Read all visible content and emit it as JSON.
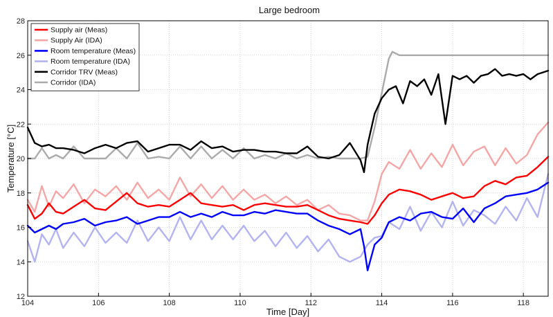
{
  "chart_data": {
    "type": "line",
    "title": "Large bedroom",
    "xlabel": "Time [Day]",
    "ylabel": "Temperature [°C]",
    "xlim": [
      104,
      118.7
    ],
    "ylim": [
      12,
      28
    ],
    "xticks": [
      104,
      106,
      108,
      110,
      112,
      114,
      116,
      118
    ],
    "yticks": [
      12,
      14,
      16,
      18,
      20,
      22,
      24,
      26,
      28
    ],
    "grid": true,
    "legend_position": "top-left",
    "series": [
      {
        "name": "Supply air (Meas)",
        "color": "#ff0000",
        "x": [
          104.0,
          104.2,
          104.4,
          104.6,
          104.8,
          105.0,
          105.3,
          105.6,
          105.9,
          106.2,
          106.5,
          106.8,
          107.1,
          107.4,
          107.7,
          108.0,
          108.3,
          108.6,
          108.9,
          109.2,
          109.5,
          109.8,
          110.1,
          110.4,
          110.7,
          111.0,
          111.3,
          111.6,
          111.9,
          112.2,
          112.5,
          112.8,
          113.1,
          113.4,
          113.6,
          113.8,
          114.0,
          114.2,
          114.5,
          114.8,
          115.1,
          115.4,
          115.7,
          116.0,
          116.3,
          116.6,
          116.9,
          117.2,
          117.5,
          117.8,
          118.1,
          118.4,
          118.7
        ],
        "values": [
          17.3,
          16.5,
          16.8,
          17.4,
          16.9,
          16.8,
          17.2,
          17.6,
          17.1,
          17.0,
          17.5,
          18.0,
          17.4,
          17.2,
          17.3,
          17.2,
          17.6,
          18.0,
          17.4,
          17.3,
          17.2,
          17.3,
          17.0,
          17.3,
          17.4,
          17.3,
          17.2,
          17.2,
          17.3,
          17.0,
          16.7,
          16.5,
          16.4,
          16.3,
          16.2,
          16.7,
          17.4,
          17.9,
          18.2,
          18.1,
          17.9,
          17.6,
          17.8,
          18.0,
          17.7,
          17.8,
          18.4,
          18.7,
          18.5,
          18.9,
          19.0,
          19.5,
          20.1
        ]
      },
      {
        "name": "Supply Air (IDA)",
        "color": "#f4a6a6",
        "x": [
          104.0,
          104.2,
          104.4,
          104.6,
          104.8,
          105.0,
          105.3,
          105.6,
          105.9,
          106.2,
          106.5,
          106.8,
          107.1,
          107.4,
          107.7,
          108.0,
          108.3,
          108.6,
          108.9,
          109.2,
          109.5,
          109.8,
          110.1,
          110.4,
          110.7,
          111.0,
          111.3,
          111.6,
          111.9,
          112.2,
          112.5,
          112.8,
          113.1,
          113.4,
          113.6,
          113.8,
          114.0,
          114.2,
          114.5,
          114.8,
          115.1,
          115.4,
          115.7,
          116.0,
          116.3,
          116.6,
          116.9,
          117.2,
          117.5,
          117.8,
          118.1,
          118.4,
          118.7
        ],
        "values": [
          17.6,
          16.9,
          18.4,
          17.2,
          18.1,
          17.7,
          18.5,
          17.4,
          18.2,
          17.8,
          18.4,
          17.6,
          18.6,
          17.7,
          18.2,
          17.6,
          18.9,
          17.8,
          18.5,
          17.7,
          18.4,
          17.6,
          18.2,
          17.6,
          17.9,
          17.4,
          17.8,
          17.3,
          17.6,
          17.0,
          17.3,
          16.8,
          16.7,
          16.4,
          16.4,
          17.5,
          19.1,
          19.8,
          19.4,
          20.5,
          19.4,
          20.3,
          19.5,
          20.8,
          19.6,
          20.4,
          20.7,
          19.6,
          20.6,
          19.7,
          20.2,
          21.4,
          22.1
        ]
      },
      {
        "name": "Room temperature (Meas)",
        "color": "#0000ff",
        "x": [
          104.0,
          104.2,
          104.4,
          104.6,
          104.8,
          105.0,
          105.3,
          105.6,
          105.9,
          106.2,
          106.5,
          106.8,
          107.1,
          107.4,
          107.7,
          108.0,
          108.3,
          108.6,
          108.9,
          109.2,
          109.5,
          109.8,
          110.1,
          110.4,
          110.7,
          111.0,
          111.3,
          111.6,
          111.9,
          112.2,
          112.5,
          112.8,
          113.1,
          113.4,
          113.5,
          113.6,
          113.8,
          114.0,
          114.2,
          114.5,
          114.8,
          115.1,
          115.4,
          115.7,
          116.0,
          116.3,
          116.6,
          116.9,
          117.2,
          117.5,
          117.8,
          118.1,
          118.4,
          118.7
        ],
        "values": [
          16.1,
          15.7,
          15.9,
          16.1,
          15.9,
          16.2,
          16.3,
          16.5,
          16.1,
          16.3,
          16.4,
          16.6,
          16.2,
          16.4,
          16.6,
          16.6,
          16.9,
          16.6,
          16.8,
          16.6,
          16.9,
          16.7,
          16.7,
          16.9,
          16.8,
          17.0,
          16.9,
          16.8,
          16.8,
          16.4,
          16.1,
          15.9,
          15.6,
          15.9,
          14.9,
          13.5,
          15.0,
          15.4,
          16.3,
          16.6,
          16.4,
          16.8,
          16.9,
          16.6,
          16.5,
          17.1,
          16.3,
          17.1,
          17.4,
          17.8,
          17.9,
          18.0,
          18.2,
          18.6
        ]
      },
      {
        "name": "Room temperature (IDA)",
        "color": "#b3b3f0",
        "x": [
          104.0,
          104.2,
          104.4,
          104.6,
          104.8,
          105.0,
          105.3,
          105.6,
          105.9,
          106.2,
          106.5,
          106.8,
          107.1,
          107.4,
          107.7,
          108.0,
          108.3,
          108.6,
          108.9,
          109.2,
          109.5,
          109.8,
          110.1,
          110.4,
          110.7,
          111.0,
          111.3,
          111.6,
          111.9,
          112.2,
          112.5,
          112.8,
          113.1,
          113.4,
          113.6,
          113.8,
          114.0,
          114.2,
          114.5,
          114.8,
          115.1,
          115.4,
          115.7,
          116.0,
          116.3,
          116.6,
          116.9,
          117.2,
          117.5,
          117.8,
          118.1,
          118.4,
          118.7
        ],
        "values": [
          15.2,
          14.0,
          15.6,
          15.0,
          15.9,
          14.8,
          15.7,
          14.9,
          16.0,
          15.1,
          15.7,
          15.1,
          16.4,
          15.2,
          16.0,
          15.2,
          16.6,
          15.3,
          16.4,
          15.3,
          16.1,
          15.3,
          16.1,
          15.2,
          15.8,
          14.9,
          15.7,
          14.8,
          15.5,
          14.6,
          15.3,
          14.3,
          14.0,
          14.3,
          15.0,
          15.4,
          15.5,
          16.3,
          15.9,
          17.2,
          15.8,
          16.9,
          16.0,
          17.5,
          16.1,
          17.0,
          16.7,
          16.2,
          17.2,
          16.4,
          17.7,
          16.6,
          19.1
        ]
      },
      {
        "name": "Corridor TRV (Meas)",
        "color": "#000000",
        "x": [
          104.0,
          104.2,
          104.4,
          104.6,
          104.8,
          105.0,
          105.3,
          105.6,
          105.9,
          106.2,
          106.5,
          106.8,
          107.1,
          107.4,
          107.7,
          108.0,
          108.3,
          108.6,
          108.9,
          109.2,
          109.5,
          109.8,
          110.1,
          110.4,
          110.7,
          111.0,
          111.3,
          111.6,
          111.9,
          112.2,
          112.5,
          112.8,
          113.1,
          113.4,
          113.5,
          113.6,
          113.8,
          114.0,
          114.2,
          114.4,
          114.6,
          114.8,
          115.0,
          115.2,
          115.4,
          115.6,
          115.8,
          116.0,
          116.2,
          116.4,
          116.6,
          116.8,
          117.0,
          117.2,
          117.4,
          117.6,
          117.8,
          118.0,
          118.2,
          118.4,
          118.7
        ],
        "values": [
          21.8,
          20.9,
          20.7,
          20.8,
          20.6,
          20.6,
          20.5,
          20.3,
          20.6,
          20.8,
          20.6,
          20.9,
          21.0,
          20.4,
          20.6,
          20.8,
          20.8,
          20.5,
          21.0,
          20.6,
          20.7,
          20.4,
          20.5,
          20.5,
          20.4,
          20.4,
          20.3,
          20.3,
          20.7,
          20.1,
          20.0,
          20.2,
          20.9,
          19.9,
          19.2,
          20.8,
          22.6,
          23.5,
          24.0,
          24.2,
          23.2,
          24.5,
          24.2,
          24.6,
          23.7,
          24.9,
          22.0,
          24.8,
          24.6,
          24.8,
          24.4,
          24.8,
          24.9,
          25.2,
          24.8,
          24.9,
          24.8,
          24.9,
          24.6,
          24.9,
          25.1
        ]
      },
      {
        "name": "Corridor (IDA)",
        "color": "#aaaaaa",
        "x": [
          104.0,
          104.2,
          104.4,
          104.6,
          104.8,
          105.0,
          105.3,
          105.6,
          105.9,
          106.2,
          106.5,
          106.8,
          107.1,
          107.4,
          107.7,
          108.0,
          108.3,
          108.6,
          108.9,
          109.2,
          109.5,
          109.8,
          110.1,
          110.4,
          110.7,
          111.0,
          111.3,
          111.6,
          111.9,
          112.2,
          112.5,
          112.8,
          113.1,
          113.4,
          113.6,
          113.8,
          114.0,
          114.1,
          114.2,
          114.3,
          114.5,
          114.8,
          115.2,
          115.6,
          116.0,
          116.4,
          116.8,
          117.2,
          117.6,
          118.0,
          118.4,
          118.7
        ],
        "values": [
          20.0,
          20.0,
          20.6,
          20.0,
          20.2,
          20.0,
          20.7,
          20.0,
          20.0,
          20.0,
          20.6,
          20.0,
          20.9,
          20.0,
          20.1,
          20.0,
          20.7,
          20.0,
          20.7,
          20.0,
          20.5,
          20.0,
          20.6,
          20.0,
          20.2,
          20.0,
          20.3,
          20.0,
          20.2,
          20.0,
          20.1,
          20.0,
          20.0,
          20.0,
          20.1,
          21.8,
          23.8,
          24.8,
          25.8,
          26.2,
          26.0,
          26.0,
          26.0,
          26.0,
          26.0,
          26.0,
          26.0,
          26.0,
          26.0,
          26.0,
          26.0,
          26.0
        ]
      }
    ]
  }
}
